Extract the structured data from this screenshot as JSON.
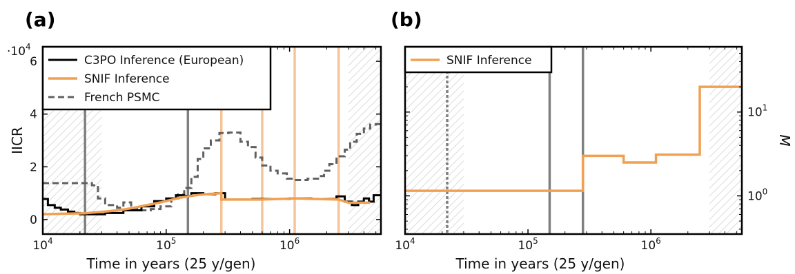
{
  "panels": {
    "a": {
      "label": "(a)"
    },
    "b": {
      "label": "(b)"
    }
  },
  "colors": {
    "c3po": "#000000",
    "snif": "#f0a050",
    "psmc": "#606060",
    "vline_gray": "#808080",
    "vline_orange": "#f6c49a",
    "hatch": "#cccccc"
  },
  "chart_data": [
    {
      "type": "line",
      "panel": "a",
      "xlabel": "Time in years (25 y/gen)",
      "ylabel": "IICR",
      "y_multiplier": "·10",
      "y_multiplier_exp": "4",
      "xscale": "log",
      "xlim": [
        10000,
        5500000
      ],
      "ylim": [
        -0.55,
        6.55
      ],
      "xticks": [
        {
          "value": 10000,
          "base": "10",
          "exp": "4"
        },
        {
          "value": 100000,
          "base": "10",
          "exp": "5"
        },
        {
          "value": 1000000,
          "base": "10",
          "exp": "6"
        }
      ],
      "yticks": [
        {
          "value": 0,
          "label": "0"
        },
        {
          "value": 2,
          "label": "2"
        },
        {
          "value": 4,
          "label": "4"
        },
        {
          "value": 6,
          "label": "6"
        }
      ],
      "legend": {
        "placement": "top-left",
        "entries": [
          {
            "label": "C3PO Inference (European)",
            "series": "c3po"
          },
          {
            "label": "SNIF Inference",
            "series": "snif"
          },
          {
            "label": "French PSMC",
            "series": "psmc"
          }
        ]
      },
      "hatched_regions": [
        [
          10000,
          30000
        ],
        [
          3000000,
          5500000
        ]
      ],
      "vlines": [
        {
          "x": 22000,
          "series": "vline_gray"
        },
        {
          "x": 150000,
          "series": "vline_gray"
        },
        {
          "x": 280000,
          "series": "vline_gray"
        },
        {
          "x": 280000,
          "series": "vline_orange"
        },
        {
          "x": 600000,
          "series": "vline_orange"
        },
        {
          "x": 1100000,
          "series": "vline_orange"
        },
        {
          "x": 2500000,
          "series": "vline_orange"
        }
      ],
      "series": [
        {
          "id": "c3po",
          "name": "C3PO Inference (European)",
          "style": "solid",
          "step": true,
          "x": [
            10000,
            11000,
            12500,
            14000,
            16000,
            18000,
            20000,
            25000,
            32000,
            45000,
            63000,
            80000,
            100000,
            120000,
            140000,
            160000,
            180000,
            200000,
            250000,
            300000,
            400000,
            500000,
            700000,
            1000000,
            1500000,
            2000000,
            2400000,
            2800000,
            3200000,
            3600000,
            4000000,
            4400000,
            4800000
          ],
          "y": [
            0.78,
            0.55,
            0.45,
            0.38,
            0.3,
            0.25,
            0.2,
            0.2,
            0.25,
            0.35,
            0.5,
            0.7,
            0.8,
            0.92,
            0.9,
            1.0,
            1.0,
            0.96,
            1.0,
            0.76,
            0.76,
            0.78,
            0.78,
            0.8,
            0.78,
            0.78,
            0.88,
            0.68,
            0.55,
            0.68,
            0.8,
            0.68,
            0.92
          ]
        },
        {
          "id": "snif",
          "name": "SNIF Inference",
          "style": "solid",
          "step": false,
          "x": [
            10000,
            14000,
            18000,
            22000,
            28000,
            35000,
            45000,
            55000,
            70000,
            90000,
            110000,
            130000,
            150000,
            180000,
            220000,
            280000,
            280000,
            600000,
            1100000,
            2500000,
            3000000,
            4500000
          ],
          "y": [
            0.2,
            0.22,
            0.23,
            0.24,
            0.28,
            0.32,
            0.38,
            0.45,
            0.55,
            0.65,
            0.75,
            0.83,
            0.88,
            0.93,
            0.97,
            1.0,
            0.76,
            0.76,
            0.8,
            0.76,
            0.64,
            0.64
          ]
        },
        {
          "id": "psmc",
          "name": "French PSMC",
          "style": "dashed",
          "step": true,
          "x": [
            10000,
            25000,
            28000,
            32000,
            40000,
            45000,
            52000,
            60000,
            75000,
            90000,
            110000,
            125000,
            140000,
            160000,
            180000,
            200000,
            230000,
            270000,
            320000,
            400000,
            460000,
            530000,
            600000,
            700000,
            800000,
            950000,
            1100000,
            1400000,
            1700000,
            1900000,
            2100000,
            2400000,
            2800000,
            3100000,
            3500000,
            4000000,
            4500000,
            5000000
          ],
          "y": [
            1.38,
            1.3,
            0.8,
            0.55,
            0.45,
            0.65,
            0.4,
            0.35,
            0.4,
            0.5,
            0.8,
            0.95,
            1.2,
            1.62,
            2.3,
            2.7,
            3.0,
            3.28,
            3.3,
            2.95,
            2.75,
            2.35,
            2.05,
            1.85,
            1.75,
            1.55,
            1.5,
            1.55,
            1.65,
            1.85,
            2.1,
            2.4,
            2.65,
            2.95,
            3.25,
            3.45,
            3.6,
            3.62
          ]
        }
      ]
    },
    {
      "type": "line",
      "panel": "b",
      "xlabel": "Time in years (25 y/gen)",
      "ylabel": "M",
      "xscale": "log",
      "yscale": "log",
      "xlim": [
        10000,
        5500000
      ],
      "ylim": [
        0.35,
        60
      ],
      "xticks": [
        {
          "value": 10000,
          "base": "10",
          "exp": "4"
        },
        {
          "value": 100000,
          "base": "10",
          "exp": "5"
        },
        {
          "value": 1000000,
          "base": "10",
          "exp": "6"
        }
      ],
      "yticks": [
        {
          "value": 1,
          "base": "10",
          "exp": "0"
        },
        {
          "value": 10,
          "base": "10",
          "exp": "1"
        }
      ],
      "legend": {
        "placement": "top-left",
        "entries": [
          {
            "label": "SNIF Inference",
            "series": "snif"
          }
        ]
      },
      "hatched_regions": [
        [
          10000,
          30000
        ],
        [
          3000000,
          5500000
        ]
      ],
      "vlines": [
        {
          "x": 22000,
          "series": "vline_gray",
          "style": "dashed"
        },
        {
          "x": 150000,
          "series": "vline_gray"
        },
        {
          "x": 280000,
          "series": "vline_gray"
        }
      ],
      "series": [
        {
          "id": "snif",
          "name": "SNIF Inference",
          "style": "solid",
          "step": true,
          "x": [
            10000,
            280000,
            600000,
            1100000,
            2500000,
            5500000
          ],
          "y": [
            1.15,
            3.0,
            2.5,
            3.1,
            20,
            20
          ]
        }
      ]
    }
  ]
}
